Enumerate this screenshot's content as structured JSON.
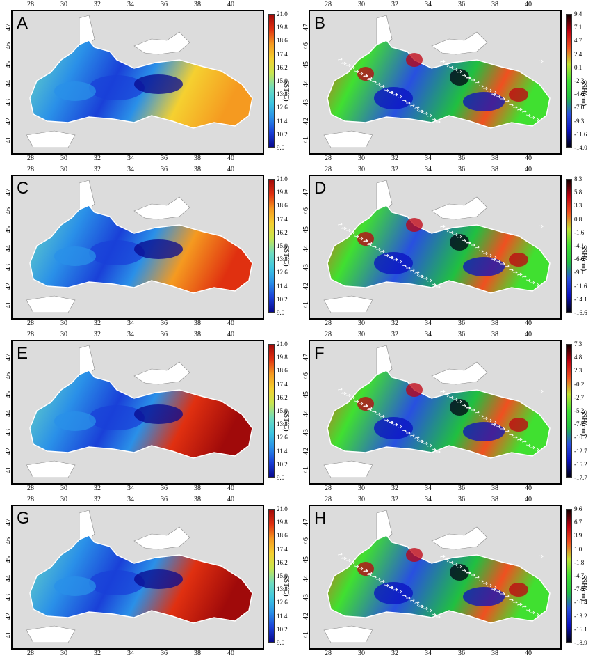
{
  "longitude_ticks": [
    "28",
    "30",
    "32",
    "34",
    "36",
    "38",
    "40"
  ],
  "latitude_ticks": [
    "47",
    "46",
    "45",
    "44",
    "43",
    "42",
    "41"
  ],
  "panels": [
    {
      "letter": "A",
      "unit": "SST(C)",
      "colorbar": [
        "21.0",
        "19.8",
        "18.6",
        "17.4",
        "16.2",
        "15.0",
        "13.8",
        "12.6",
        "11.4",
        "10.2",
        "9.0"
      ],
      "field": "sst",
      "warm": 0.3
    },
    {
      "letter": "B",
      "unit": "SSH(cm)",
      "colorbar": [
        "9.4",
        "7.1",
        "4.7",
        "2.4",
        "0.1",
        "-2.3",
        "-4.6",
        "-7.0",
        "-9.3",
        "-11.6",
        "-14.0"
      ],
      "field": "ssh"
    },
    {
      "letter": "C",
      "unit": "SST(C)",
      "colorbar": [
        "21.0",
        "19.8",
        "18.6",
        "17.4",
        "16.2",
        "15.0",
        "13.8",
        "12.6",
        "11.4",
        "10.2",
        "9.0"
      ],
      "field": "sst",
      "warm": 0.5
    },
    {
      "letter": "D",
      "unit": "SSH(cm)",
      "colorbar": [
        "8.3",
        "5.8",
        "3.3",
        "0.8",
        "-1.6",
        "-4.1",
        "-6.6",
        "-9.1",
        "-11.6",
        "-14.1",
        "-16.6"
      ],
      "field": "ssh"
    },
    {
      "letter": "E",
      "unit": "SST(C)",
      "colorbar": [
        "21.0",
        "19.8",
        "18.6",
        "17.4",
        "16.2",
        "15.0",
        "13.8",
        "12.6",
        "11.4",
        "10.2",
        "9.0"
      ],
      "field": "sst",
      "warm": 0.65
    },
    {
      "letter": "F",
      "unit": "SSH(cm)",
      "colorbar": [
        "7.3",
        "4.8",
        "2.3",
        "-0.2",
        "-2.7",
        "-5.2",
        "-7.7",
        "-10.2",
        "-12.7",
        "-15.2",
        "-17.7"
      ],
      "field": "ssh"
    },
    {
      "letter": "G",
      "unit": "SST(C)",
      "colorbar": [
        "21.0",
        "19.8",
        "18.6",
        "17.4",
        "16.2",
        "15.0",
        "13.8",
        "12.6",
        "11.4",
        "10.2",
        "9.0"
      ],
      "field": "sst",
      "warm": 0.6
    },
    {
      "letter": "H",
      "unit": "SSH(cm)",
      "colorbar": [
        "9.6",
        "6.7",
        "3.9",
        "1.0",
        "-1.8",
        "-4.7",
        "-7.5",
        "-10.4",
        "-13.2",
        "-16.1",
        "-18.9"
      ],
      "field": "ssh"
    }
  ],
  "colors": {
    "land": "#dcdcdc",
    "sst_scale": [
      "#08088e",
      "#1a40d8",
      "#2a90e8",
      "#3ec6e0",
      "#6fdcc0",
      "#c8e650",
      "#f5d030",
      "#f59a20",
      "#e03010",
      "#a00a0a"
    ],
    "ssh_scale": [
      "#000010",
      "#0a10c0",
      "#2850e0",
      "#20c040",
      "#40e030",
      "#c0e030",
      "#f05020",
      "#c00010",
      "#100000"
    ]
  }
}
